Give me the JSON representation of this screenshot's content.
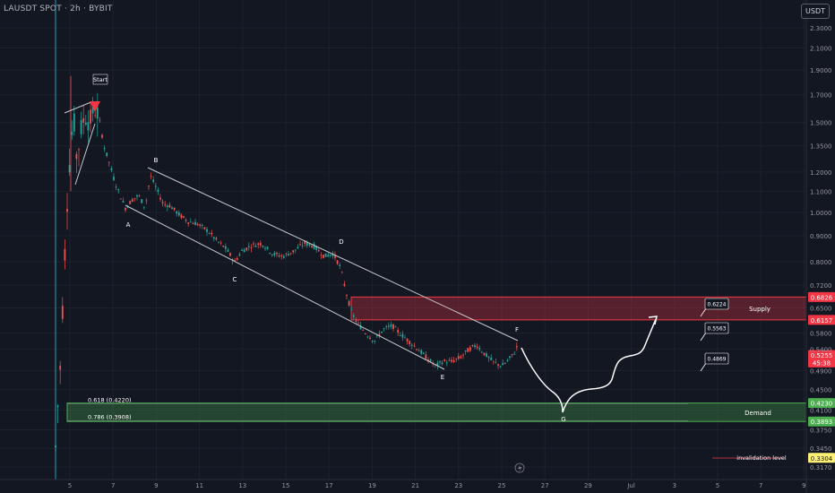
{
  "header": {
    "symbol_title": "LAUSDT SPOT · 2h · BYBIT",
    "currency": "USDT"
  },
  "colors": {
    "bg": "#131722",
    "up": "#26a69a",
    "down": "#ef5350",
    "supply": "#f23645",
    "demand": "#4caf50",
    "line": "#b2b5be",
    "axis_text": "#9598a1"
  },
  "chart_data": {
    "type": "candlestick",
    "title": "LAUSDT SPOT · 2h · BYBIT",
    "y_scale": "log",
    "ylim": [
      0.3,
      2.6
    ],
    "y_ticks": [
      "2.3000",
      "2.1000",
      "1.9000",
      "1.7000",
      "1.5000",
      "1.3500",
      "1.2000",
      "1.1000",
      "1.0000",
      "0.9000",
      "0.8000",
      "0.7200",
      "0.6500",
      "0.5800",
      "0.5400",
      "0.4900",
      "0.4500",
      "0.4100",
      "0.3750",
      "0.3450",
      "0.3170"
    ],
    "x_ticks": [
      "5",
      "7",
      "9",
      "11",
      "13",
      "15",
      "17",
      "19",
      "21",
      "23",
      "25",
      "27",
      "29",
      "Jul",
      "3",
      "5",
      "7",
      "9"
    ],
    "price_labels": [
      {
        "label": "0.6826",
        "value": 0.6826,
        "kind": "supply"
      },
      {
        "label": "0.6157",
        "value": 0.6157,
        "kind": "supply"
      },
      {
        "label": "0.5255",
        "value": 0.5255,
        "kind": "last"
      },
      {
        "label": "45:38",
        "value": 0.508,
        "kind": "countdown"
      },
      {
        "label": "0.4230",
        "value": 0.423,
        "kind": "demand"
      },
      {
        "label": "0.3893",
        "value": 0.3893,
        "kind": "demand"
      },
      {
        "label": "0.3304",
        "value": 0.3304,
        "kind": "invalidation"
      }
    ],
    "zones": [
      {
        "name": "Supply",
        "top": 0.6826,
        "bottom": 0.6157
      },
      {
        "name": "Demand",
        "top": 0.423,
        "bottom": 0.3893
      }
    ],
    "fib_levels": [
      {
        "label": "0.618 (0.4220)",
        "value": 0.422
      },
      {
        "label": "0.786 (0.3908)",
        "value": 0.3908
      }
    ],
    "targets": [
      "0.6224",
      "0.5563",
      "0.4869"
    ],
    "wave_points": [
      {
        "label": "A",
        "x": "8",
        "y": 0.99
      },
      {
        "label": "B",
        "x": "8.9",
        "y": 1.21
      },
      {
        "label": "C",
        "x": "12.8",
        "y": 0.76
      },
      {
        "label": "D",
        "x": "17.4",
        "y": 0.85
      },
      {
        "label": "E",
        "x": "22.4",
        "y": 0.49
      },
      {
        "label": "F",
        "x": "25.4",
        "y": 0.56
      },
      {
        "label": "G",
        "x": "28.1",
        "y": 0.41
      }
    ],
    "annotations": {
      "start": "Start",
      "invalidation": "invalidation level"
    }
  }
}
